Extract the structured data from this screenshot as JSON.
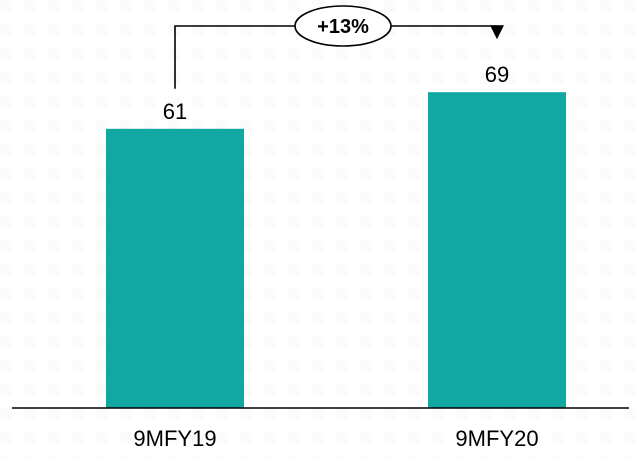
{
  "chart_data": {
    "type": "bar",
    "categories": [
      "9MFY19",
      "9MFY20"
    ],
    "values": [
      61,
      69
    ],
    "data_labels": [
      "61",
      "69"
    ],
    "title": "",
    "xlabel": "",
    "ylabel": "",
    "ylim": [
      0,
      78
    ],
    "grid": false,
    "legend": "none",
    "annotation": {
      "label": "+13%",
      "from_category": "9MFY19",
      "to_category": "9MFY20"
    }
  },
  "colors": {
    "bar": "#12A8A2",
    "axis": "#000000",
    "text": "#000000",
    "connector": "#000000",
    "background": "#ffffff"
  }
}
